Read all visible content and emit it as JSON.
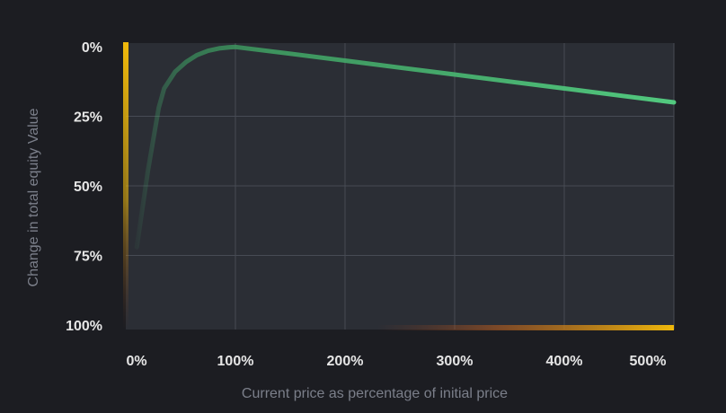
{
  "chart_data": {
    "type": "line",
    "title": "",
    "xlabel": "Current price as percentage of initial price",
    "ylabel": "Change in total equity Value",
    "x_ticks": [
      "0%",
      "100%",
      "200%",
      "300%",
      "400%",
      "500%"
    ],
    "y_ticks": [
      "0%",
      "25%",
      "50%",
      "75%",
      "100%"
    ],
    "xlim": [
      0,
      500
    ],
    "ylim": [
      0,
      100
    ],
    "y_inverted": true,
    "grid": true,
    "series": [
      {
        "color": "#4cc27a",
        "x": [
          10,
          20,
          30,
          35,
          45,
          55,
          65,
          75,
          85,
          95,
          100,
          150,
          200,
          250,
          300,
          350,
          400,
          450,
          500
        ],
        "y": [
          72,
          45,
          22,
          15,
          9,
          5.5,
          3,
          1.5,
          0.6,
          0.2,
          0.1,
          2.5,
          5,
          7.5,
          10,
          12.5,
          15,
          17.5,
          20
        ]
      }
    ],
    "highlight_color": "#f0b90b"
  }
}
